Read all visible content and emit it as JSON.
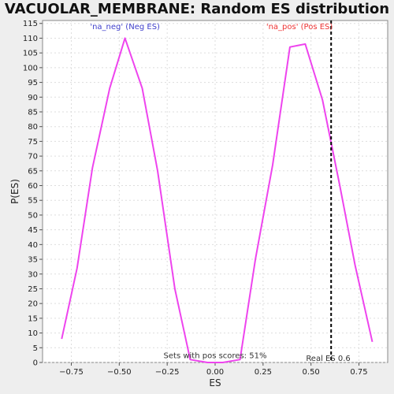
{
  "chart_data": {
    "type": "line",
    "title": "VACUOLAR_MEMBRANE: Random ES distribution",
    "xlabel": "ES",
    "ylabel": "P(ES)",
    "xlim": [
      -0.9,
      0.9
    ],
    "ylim": [
      0,
      116
    ],
    "xticks": [
      -0.75,
      -0.5,
      -0.25,
      0.0,
      0.25,
      0.5,
      0.75
    ],
    "xtick_labels": [
      "−0.75",
      "−0.50",
      "−0.25",
      "0.00",
      "0.25",
      "0.50",
      "0.75"
    ],
    "yticks": [
      0,
      5,
      10,
      15,
      20,
      25,
      30,
      35,
      40,
      45,
      50,
      55,
      60,
      65,
      70,
      75,
      80,
      85,
      90,
      95,
      100,
      105,
      110,
      115
    ],
    "grid": true,
    "series": [
      {
        "color": "#ee44ee",
        "x": [
          -0.8,
          -0.72,
          -0.64,
          -0.55,
          -0.47,
          -0.38,
          -0.3,
          -0.21,
          -0.13,
          -0.04,
          0.04,
          0.13,
          0.21,
          0.3,
          0.39,
          0.47,
          0.56,
          0.65,
          0.73,
          0.82
        ],
        "y": [
          8,
          32,
          66,
          93,
          110,
          93,
          65,
          25,
          1,
          0,
          0,
          1,
          35,
          67,
          107,
          108,
          89,
          60,
          33,
          7
        ]
      }
    ],
    "annotations": [
      {
        "text": "'na_neg' (Neg ES)",
        "x": -0.47,
        "y": 113,
        "color": "#4040cc"
      },
      {
        "text": "'na_pos' (Pos ES)",
        "x": 0.44,
        "y": 113,
        "color": "#ee3333"
      },
      {
        "text": "Sets with pos scores: 51%",
        "x": 0.0,
        "y": 1.5,
        "color": "#333333"
      },
      {
        "text": "Real ES 0.6",
        "x": 0.59,
        "y": 0.5,
        "color": "#333333"
      }
    ],
    "reference_line": {
      "x": 0.605,
      "style": "dashed",
      "color": "#000000"
    }
  }
}
